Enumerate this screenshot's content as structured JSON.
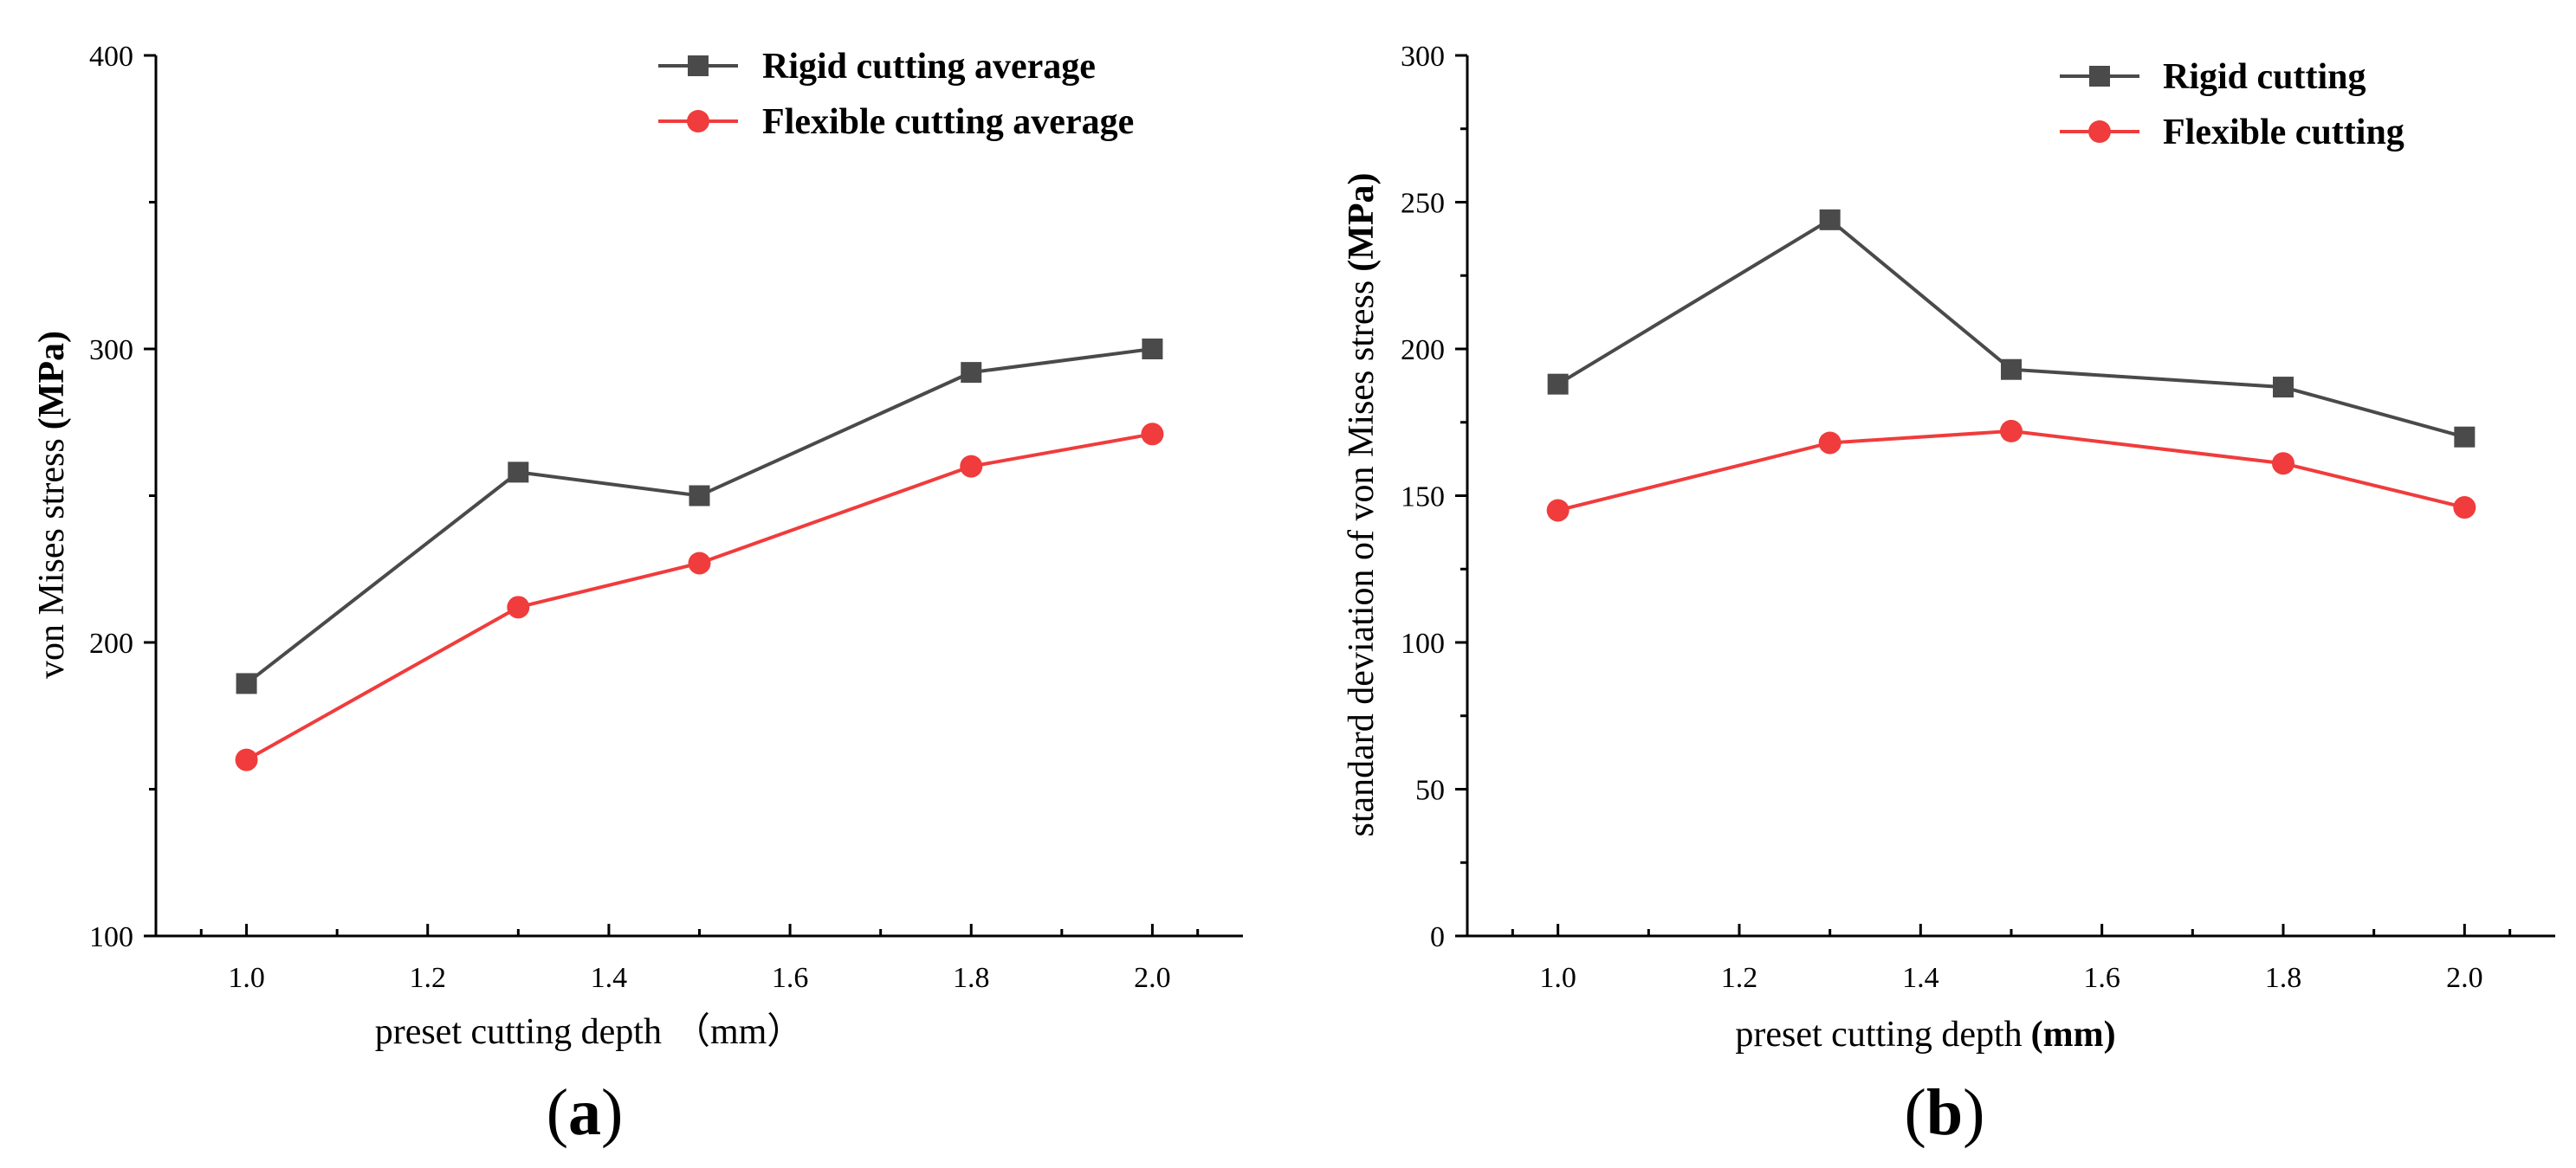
{
  "chart_data": [
    {
      "type": "line",
      "panel_label": "a",
      "xlabel": "preset cutting depth",
      "xlabel_unit": "（mm）",
      "ylabel": "von Mises stress",
      "ylabel_unit": "(MPa)",
      "xlim": [
        0.9,
        2.1
      ],
      "ylim": [
        100,
        400
      ],
      "x_ticks": [
        1.0,
        1.2,
        1.4,
        1.6,
        1.8,
        2.0
      ],
      "x_tick_labels": [
        "1.0",
        "1.2",
        "1.4",
        "1.6",
        "1.8",
        "2.0"
      ],
      "y_ticks": [
        100,
        200,
        300,
        400
      ],
      "y_tick_labels": [
        "100",
        "200",
        "300",
        "400"
      ],
      "legend_position": "top-right",
      "x": [
        1.0,
        1.3,
        1.5,
        1.8,
        2.0
      ],
      "series": [
        {
          "name": "Rigid cutting average",
          "marker": "square",
          "color": "#4a4a4a",
          "values": [
            186,
            258,
            250,
            292,
            300
          ]
        },
        {
          "name": "Flexible cutting average",
          "marker": "circle",
          "color": "#f03c3c",
          "values": [
            160,
            212,
            227,
            260,
            271
          ]
        }
      ]
    },
    {
      "type": "line",
      "panel_label": "b",
      "xlabel": "preset cutting depth",
      "xlabel_unit": "(mm)",
      "ylabel": "standard deviation of von Mises stress",
      "ylabel_unit": "(MPa)",
      "xlim": [
        0.9,
        2.1
      ],
      "ylim": [
        0,
        300
      ],
      "x_ticks": [
        1.0,
        1.2,
        1.4,
        1.6,
        1.8,
        2.0
      ],
      "x_tick_labels": [
        "1.0",
        "1.2",
        "1.4",
        "1.6",
        "1.8",
        "2.0"
      ],
      "y_ticks": [
        0,
        50,
        100,
        150,
        200,
        250,
        300
      ],
      "y_tick_labels": [
        "0",
        "50",
        "100",
        "150",
        "200",
        "250",
        "300"
      ],
      "legend_position": "top-right",
      "x": [
        1.0,
        1.3,
        1.5,
        1.8,
        2.0
      ],
      "series": [
        {
          "name": "Rigid cutting",
          "marker": "square",
          "color": "#4a4a4a",
          "values": [
            188,
            244,
            193,
            187,
            170
          ]
        },
        {
          "name": "Flexible cutting",
          "marker": "circle",
          "color": "#f03c3c",
          "values": [
            145,
            168,
            172,
            161,
            146
          ]
        }
      ]
    }
  ]
}
